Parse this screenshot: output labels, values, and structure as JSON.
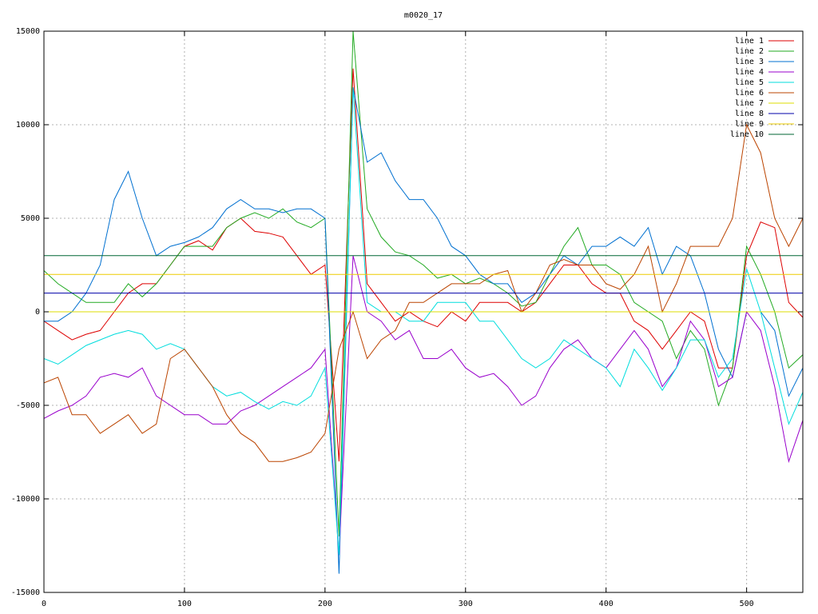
{
  "chart_data": {
    "type": "line",
    "title": "m0020_17",
    "x": [
      0,
      10,
      20,
      30,
      40,
      50,
      60,
      70,
      80,
      90,
      100,
      110,
      120,
      130,
      140,
      150,
      160,
      170,
      180,
      190,
      200,
      210,
      220,
      230,
      240,
      250,
      260,
      270,
      280,
      290,
      300,
      310,
      320,
      330,
      340,
      350,
      360,
      370,
      380,
      390,
      400,
      410,
      420,
      430,
      440,
      450,
      460,
      470,
      480,
      490,
      500,
      510,
      520,
      530,
      540
    ],
    "xlim": [
      0,
      540
    ],
    "xticks": [
      0,
      100,
      200,
      300,
      400,
      500
    ],
    "ylim": [
      -15000,
      15000
    ],
    "yticks": [
      -15000,
      -10000,
      -5000,
      0,
      5000,
      10000,
      15000
    ],
    "grid": true,
    "legend": "top-right",
    "series": [
      {
        "name": "line 1",
        "color": "#dd0000",
        "values": [
          -500,
          -1000,
          -1500,
          -1200,
          -1000,
          0,
          1000,
          1500,
          1500,
          2500,
          3500,
          3800,
          3300,
          4500,
          5000,
          4300,
          4200,
          4000,
          3000,
          2000,
          2500,
          -8000,
          13000,
          1500,
          500,
          -500,
          0,
          -500,
          -800,
          0,
          -500,
          500,
          500,
          500,
          0,
          500,
          1500,
          2500,
          2500,
          1500,
          1000,
          1000,
          -500,
          -1000,
          -2000,
          -1000,
          0,
          -500,
          -3000,
          -3000,
          3000,
          4800,
          4500,
          500,
          -300
        ]
      },
      {
        "name": "line 2",
        "color": "#22aa22",
        "values": [
          2200,
          1500,
          1000,
          500,
          500,
          500,
          1500,
          800,
          1500,
          2500,
          3500,
          3500,
          3500,
          4500,
          5000,
          5300,
          5000,
          5500,
          4800,
          4500,
          5000,
          -12000,
          15000,
          5500,
          4000,
          3200,
          3000,
          2500,
          1800,
          2000,
          1500,
          1800,
          1500,
          1000,
          300,
          500,
          2000,
          3500,
          4500,
          2500,
          2500,
          2000,
          500,
          0,
          -500,
          -2500,
          -1000,
          -2000,
          -5000,
          -3000,
          3500,
          2000,
          0,
          -3000,
          -2300
        ]
      },
      {
        "name": "line 3",
        "color": "#0070d0",
        "values": [
          -500,
          -500,
          0,
          1000,
          2500,
          6000,
          7500,
          5000,
          3000,
          3500,
          3700,
          4000,
          4500,
          5500,
          6000,
          5500,
          5500,
          5300,
          5500,
          5500,
          5000,
          -14000,
          12000,
          8000,
          8500,
          7000,
          6000,
          6000,
          5000,
          3500,
          3000,
          2000,
          1500,
          1500,
          500,
          1000,
          2000,
          3000,
          2500,
          3500,
          3500,
          4000,
          3500,
          4500,
          2000,
          3500,
          3000,
          1000,
          -2000,
          -3500,
          0,
          0,
          -1000,
          -4500,
          -3000
        ]
      },
      {
        "name": "line 4",
        "color": "#9900cc",
        "values": [
          -5700,
          -5300,
          -5000,
          -4500,
          -3500,
          -3300,
          -3500,
          -3000,
          -4500,
          -5000,
          -5500,
          -5500,
          -6000,
          -6000,
          -5300,
          -5000,
          -4500,
          -4000,
          -3500,
          -3000,
          -2000,
          -13000,
          3000,
          0,
          -500,
          -1500,
          -1000,
          -2500,
          -2500,
          -2000,
          -3000,
          -3500,
          -3300,
          -4000,
          -5000,
          -4500,
          -3000,
          -2000,
          -1500,
          -2500,
          -3000,
          -2000,
          -1000,
          -2000,
          -4000,
          -3000,
          -500,
          -1500,
          -4000,
          -3500,
          0,
          -1000,
          -4000,
          -8000,
          -5800
        ]
      },
      {
        "name": "line 5",
        "color": "#00dddd",
        "values": [
          -2500,
          -2800,
          -2300,
          -1800,
          -1500,
          -1200,
          -1000,
          -1200,
          -2000,
          -1700,
          -2000,
          -3000,
          -4000,
          -4500,
          -4300,
          -4800,
          -5200,
          -4800,
          -5000,
          -4500,
          -3000,
          -13000,
          12000,
          500,
          0,
          0,
          -500,
          -500,
          500,
          500,
          500,
          -500,
          -500,
          -1500,
          -2500,
          -3000,
          -2500,
          -1500,
          -2000,
          -2500,
          -3000,
          -4000,
          -2000,
          -3000,
          -4200,
          -3000,
          -1500,
          -1500,
          -3500,
          -2500,
          2300,
          0,
          -3000,
          -6000,
          -4300
        ]
      },
      {
        "name": "line 6",
        "color": "#bb4400",
        "values": [
          -3800,
          -3500,
          -5500,
          -5500,
          -6500,
          -6000,
          -5500,
          -6500,
          -6000,
          -2500,
          -2000,
          -3000,
          -4000,
          -5500,
          -6500,
          -7000,
          -8000,
          -8000,
          -7800,
          -7500,
          -6500,
          -2000,
          0,
          -2500,
          -1500,
          -1000,
          500,
          500,
          1000,
          1500,
          1500,
          1500,
          2000,
          2200,
          0,
          1000,
          2500,
          2800,
          2500,
          2500,
          1500,
          1200,
          2000,
          3500,
          0,
          1500,
          3500,
          3500,
          3500,
          5000,
          10000,
          8500,
          5000,
          3500,
          5000
        ]
      },
      {
        "name": "line 7",
        "color": "#dddd00",
        "values": [
          0,
          0,
          0,
          0,
          0,
          0,
          0,
          0,
          0,
          0,
          0,
          0,
          0,
          0,
          0,
          0,
          0,
          0,
          0,
          0,
          0,
          0,
          0,
          0,
          0,
          0,
          0,
          0,
          0,
          0,
          0,
          0,
          0,
          0,
          0,
          0,
          0,
          0,
          0,
          0,
          0,
          0,
          0,
          0,
          0,
          0,
          0,
          0,
          0,
          0,
          0,
          0,
          0,
          0,
          0
        ]
      },
      {
        "name": "line 8",
        "color": "#0000aa",
        "values": [
          1000,
          1000,
          1000,
          1000,
          1000,
          1000,
          1000,
          1000,
          1000,
          1000,
          1000,
          1000,
          1000,
          1000,
          1000,
          1000,
          1000,
          1000,
          1000,
          1000,
          1000,
          1000,
          1000,
          1000,
          1000,
          1000,
          1000,
          1000,
          1000,
          1000,
          1000,
          1000,
          1000,
          1000,
          1000,
          1000,
          1000,
          1000,
          1000,
          1000,
          1000,
          1000,
          1000,
          1000,
          1000,
          1000,
          1000,
          1000,
          1000,
          1000,
          1000,
          1000,
          1000,
          1000,
          1000
        ]
      },
      {
        "name": "line 9",
        "color": "#eecc00",
        "values": [
          2000,
          2000,
          2000,
          2000,
          2000,
          2000,
          2000,
          2000,
          2000,
          2000,
          2000,
          2000,
          2000,
          2000,
          2000,
          2000,
          2000,
          2000,
          2000,
          2000,
          2000,
          2000,
          2000,
          2000,
          2000,
          2000,
          2000,
          2000,
          2000,
          2000,
          2000,
          2000,
          2000,
          2000,
          2000,
          2000,
          2000,
          2000,
          2000,
          2000,
          2000,
          2000,
          2000,
          2000,
          2000,
          2000,
          2000,
          2000,
          2000,
          2000,
          2000,
          2000,
          2000,
          2000,
          2000
        ]
      },
      {
        "name": "line 10",
        "color": "#006633",
        "values": [
          3000,
          3000,
          3000,
          3000,
          3000,
          3000,
          3000,
          3000,
          3000,
          3000,
          3000,
          3000,
          3000,
          3000,
          3000,
          3000,
          3000,
          3000,
          3000,
          3000,
          3000,
          3000,
          3000,
          3000,
          3000,
          3000,
          3000,
          3000,
          3000,
          3000,
          3000,
          3000,
          3000,
          3000,
          3000,
          3000,
          3000,
          3000,
          3000,
          3000,
          3000,
          3000,
          3000,
          3000,
          3000,
          3000,
          3000,
          3000,
          3000,
          3000,
          3000,
          3000,
          3000,
          3000,
          3000
        ]
      }
    ]
  }
}
